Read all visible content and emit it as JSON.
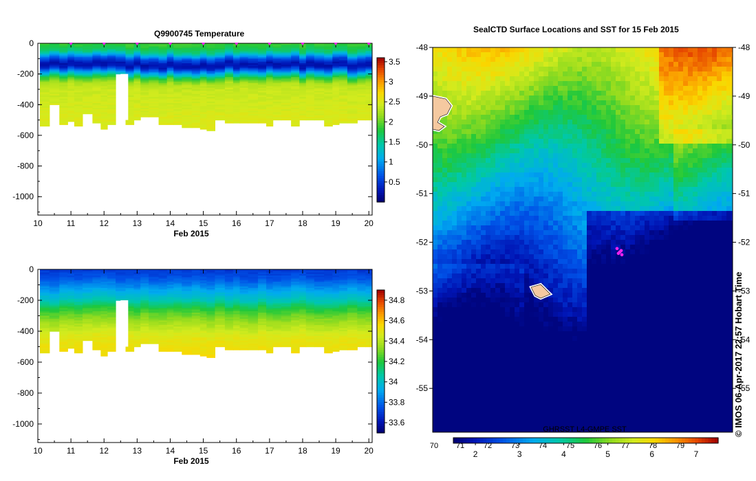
{
  "chart_data": [
    {
      "type": "heatmap",
      "title": "Q9900745  Temperature",
      "xlabel": "Feb 2015",
      "ylabel": "",
      "x_ticks": [
        "10",
        "11",
        "12",
        "13",
        "14",
        "15",
        "16",
        "17",
        "18",
        "19",
        "20"
      ],
      "xlim": [
        10,
        20.1
      ],
      "y_ticks": [
        "0",
        "-200",
        "-400",
        "-600",
        "-800",
        "-1000"
      ],
      "ylim": [
        -1120,
        0
      ],
      "profile_days": [
        10.2,
        10.5,
        10.8,
        11.0,
        11.2,
        11.5,
        11.8,
        12.0,
        12.2,
        12.5,
        12.8,
        13.0,
        13.2,
        13.5,
        13.8,
        14.0,
        14.2,
        14.5,
        14.8,
        15.0,
        15.2,
        15.5,
        15.8,
        16.0,
        16.2,
        16.5,
        16.8,
        17.0,
        17.2,
        17.5,
        17.8,
        18.0,
        18.2,
        18.5,
        18.8,
        19.0,
        19.2,
        19.5,
        19.8,
        20.0
      ],
      "profile_max_depth": [
        -535,
        -400,
        -530,
        -510,
        -540,
        -460,
        -520,
        -560,
        -530,
        -200,
        -530,
        -500,
        -480,
        -480,
        -530,
        -530,
        -530,
        -550,
        -550,
        -560,
        -565,
        -500,
        -520,
        -520,
        -520,
        -520,
        -520,
        -535,
        -500,
        -500,
        -535,
        -500,
        -500,
        -500,
        -535,
        -530,
        -520,
        -520,
        -495,
        -495
      ],
      "depth_profile": {
        "depth": [
          0,
          -50,
          -100,
          -130,
          -150,
          -180,
          -220,
          -260,
          -300,
          -400,
          -500,
          -560
        ],
        "temperature": [
          1.9,
          1.6,
          0.6,
          0.25,
          0.3,
          0.9,
          1.8,
          2.3,
          2.4,
          2.45,
          2.5,
          2.5
        ]
      },
      "surface_marks_days": [
        11,
        12,
        13,
        14,
        15,
        16,
        17,
        18,
        19,
        20
      ],
      "colorbar": {
        "min": 0,
        "max": 3.6,
        "ticks": [
          "0.5",
          "1",
          "1.5",
          "2",
          "2.5",
          "3",
          "3.5"
        ]
      }
    },
    {
      "type": "heatmap",
      "title": "",
      "xlabel": "Feb 2015",
      "ylabel": "",
      "x_ticks": [
        "10",
        "11",
        "12",
        "13",
        "14",
        "15",
        "16",
        "17",
        "18",
        "19",
        "20"
      ],
      "xlim": [
        10,
        20.1
      ],
      "y_ticks": [
        "0",
        "-200",
        "-400",
        "-600",
        "-800",
        "-1000"
      ],
      "ylim": [
        -1120,
        0
      ],
      "depth_profile": {
        "depth": [
          0,
          -50,
          -100,
          -150,
          -200,
          -250,
          -300,
          -350,
          -400,
          -450,
          -500,
          -560
        ],
        "salinity": [
          33.7,
          33.75,
          33.85,
          33.95,
          34.05,
          34.2,
          34.3,
          34.38,
          34.45,
          34.5,
          34.52,
          34.55
        ]
      },
      "colorbar": {
        "min": 33.5,
        "max": 34.9,
        "ticks": [
          "33.6",
          "33.8",
          "34",
          "34.2",
          "34.4",
          "34.6",
          "34.8"
        ]
      }
    },
    {
      "type": "heatmap",
      "title": "SealCTD Surface Locations and SST for 15 Feb 2015",
      "xlabel": "",
      "ylabel": "",
      "y_ticks": [
        "-48",
        "-49",
        "-50",
        "-51",
        "-52",
        "-53",
        "-54",
        "-55"
      ],
      "ylim": [
        -55.9,
        -48
      ],
      "colorbar": {
        "label": "GHRSST L4-GMPE SST",
        "min": 1.5,
        "max": 7.5,
        "top_ticks": [
          "70",
          "71",
          "72",
          "73",
          "74",
          "75",
          "76",
          "77",
          "78",
          "79"
        ],
        "bottom_ticks": [
          "2",
          "3",
          "4",
          "5",
          "6",
          "7"
        ]
      },
      "marks": [
        {
          "name": "seal locations",
          "color": "#ee22ee",
          "lat": -52.2
        }
      ]
    }
  ],
  "credit": "© IMOS 06-Apr-2017 22:57 Hobart Time"
}
